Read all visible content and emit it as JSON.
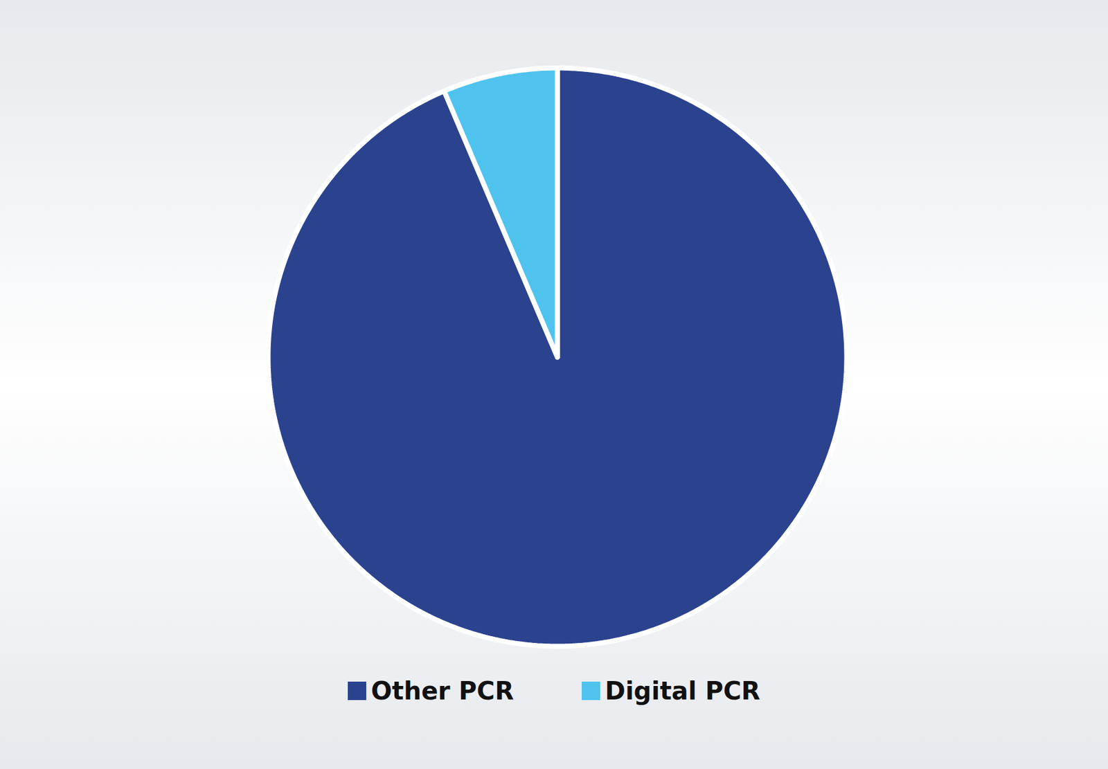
{
  "chart_data": {
    "type": "pie",
    "categories": [
      "Other PCR",
      "Digital PCR"
    ],
    "values": [
      93.6,
      6.4
    ],
    "colors": [
      "#2b438f",
      "#4fc3ee"
    ],
    "legend": "bottom"
  }
}
